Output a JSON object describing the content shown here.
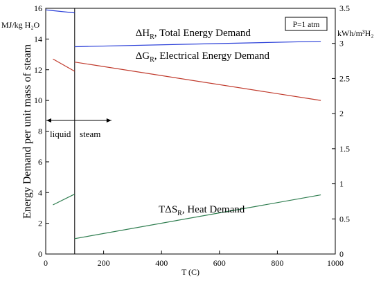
{
  "chart_data": {
    "type": "line",
    "xlabel": "T (C)",
    "ylabel": "Energy Demand per unit mass of steam",
    "ylabel_left_unit": "MJ/kg H₂O",
    "ylabel_right_unit": "kWh/m³H₂",
    "xlim": [
      0,
      1000
    ],
    "ylim": [
      0,
      16
    ],
    "ylim_right": [
      0,
      3.5
    ],
    "x_ticks": [
      0,
      200,
      400,
      600,
      800,
      1000
    ],
    "y_ticks": [
      0,
      2,
      4,
      6,
      8,
      10,
      12,
      14,
      16
    ],
    "y_right_ticks": [
      0,
      0.5,
      1,
      1.5,
      2,
      2.5,
      3,
      3.5
    ],
    "phase_boundary_x": 100,
    "phase_arrow_y": 8.7,
    "phase_labels": {
      "liquid": "liquid",
      "steam": "steam"
    },
    "annotation_box": "P=1 atm",
    "series": [
      {
        "key": "dH_liquid",
        "label_main": "",
        "label_sub": "",
        "label_rest": "",
        "color": "#2a3fd8",
        "x": [
          0,
          100
        ],
        "y": [
          15.9,
          15.7
        ]
      },
      {
        "key": "dH_steam",
        "label_main": "ΔH",
        "label_sub": "R",
        "label_rest": ", Total Energy Demand",
        "color": "#2a3fd8",
        "x": [
          100,
          950
        ],
        "y": [
          13.5,
          13.85
        ],
        "label_x": 310,
        "label_y": 14.2
      },
      {
        "key": "dG_liquid",
        "label_main": "",
        "label_sub": "",
        "label_rest": "",
        "color": "#c0392b",
        "x": [
          25,
          100
        ],
        "y": [
          12.7,
          11.9
        ]
      },
      {
        "key": "dG_steam",
        "label_main": "ΔG",
        "label_sub": "R",
        "label_rest": ", Electrical Energy Demand",
        "color": "#c0392b",
        "x": [
          100,
          950
        ],
        "y": [
          12.5,
          10.0
        ],
        "label_x": 310,
        "label_y": 12.7
      },
      {
        "key": "TdS_liquid",
        "label_main": "",
        "label_sub": "",
        "label_rest": "",
        "color": "#2e7d4f",
        "x": [
          25,
          100
        ],
        "y": [
          3.2,
          3.9
        ]
      },
      {
        "key": "TdS_steam",
        "label_main": "TΔS",
        "label_sub": "R",
        "label_rest": ", Heat Demand",
        "color": "#2e7d4f",
        "x": [
          100,
          950
        ],
        "y": [
          1.0,
          3.85
        ],
        "label_x": 390,
        "label_y": 2.7
      }
    ]
  }
}
